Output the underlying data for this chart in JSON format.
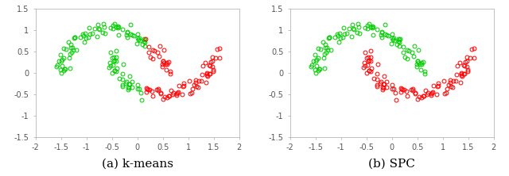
{
  "seed": 0,
  "n_samples": 200,
  "noise": 0.08,
  "green_color": "#00cc00",
  "red_color": "#ff0000",
  "xlim": [
    -2,
    2
  ],
  "ylim": [
    -1.5,
    1.5
  ],
  "xticks": [
    -2,
    -1.5,
    -1,
    -0.5,
    0,
    0.5,
    1,
    1.5,
    2
  ],
  "yticks": [
    -1.5,
    -1,
    -0.5,
    0,
    0.5,
    1,
    1.5
  ],
  "markersize": 3.5,
  "markeredgewidth": 0.7,
  "label_a": "(a) k-means",
  "label_b": "(b) SPC",
  "label_fontsize": 11,
  "figsize": [
    6.4,
    2.22
  ],
  "dpi": 100,
  "tick_labelsize": 7,
  "spine_color": "#aaaaaa"
}
